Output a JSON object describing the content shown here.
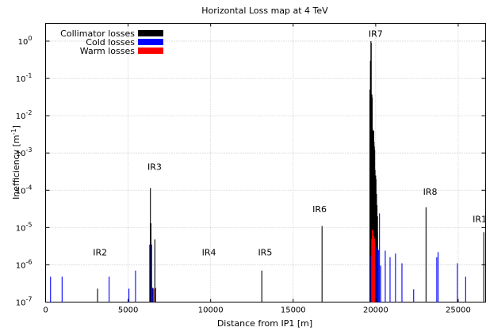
{
  "chart_data": {
    "type": "bar",
    "title": "Horizontal Loss map at 4 TeV",
    "xlabel": "Distance from IP1 [m]",
    "ylabel": "Inefficiency [m",
    "ylabel_sup": "-1",
    "ylabel_end": "]",
    "xlim": [
      0,
      26659
    ],
    "ylim": [
      1e-07,
      3
    ],
    "y_scale": "log",
    "grid": true,
    "legend_position": "top-left",
    "x_ticks": [
      {
        "value": 0,
        "label": "0"
      },
      {
        "value": 5000,
        "label": "5000"
      },
      {
        "value": 10000,
        "label": "10000"
      },
      {
        "value": 15000,
        "label": "15000"
      },
      {
        "value": 20000,
        "label": "20000"
      },
      {
        "value": 25000,
        "label": "25000"
      }
    ],
    "y_ticks": [
      {
        "value": 1e-07,
        "base": "10",
        "exp": "-7"
      },
      {
        "value": 1e-06,
        "base": "10",
        "exp": "-6"
      },
      {
        "value": 1e-05,
        "base": "10",
        "exp": "-5"
      },
      {
        "value": 0.0001,
        "base": "10",
        "exp": "-4"
      },
      {
        "value": 0.001,
        "base": "10",
        "exp": "-3"
      },
      {
        "value": 0.01,
        "base": "10",
        "exp": "-2"
      },
      {
        "value": 0.1,
        "base": "10",
        "exp": "-1"
      },
      {
        "value": 1,
        "base": "10",
        "exp": "0"
      }
    ],
    "annotations": [
      {
        "text": "IR2",
        "x": 3300,
        "y": 1.8e-06
      },
      {
        "text": "IR3",
        "x": 6600,
        "y": 0.00035
      },
      {
        "text": "IR4",
        "x": 9900,
        "y": 1.8e-06
      },
      {
        "text": "IR5",
        "x": 13300,
        "y": 1.8e-06
      },
      {
        "text": "IR6",
        "x": 16600,
        "y": 2.6e-05
      },
      {
        "text": "IR7",
        "x": 20000,
        "y": 1.3
      },
      {
        "text": "IR8",
        "x": 23300,
        "y": 7.5e-05
      },
      {
        "text": "IR1",
        "x": 26300,
        "y": 1.4e-05
      }
    ],
    "series": [
      {
        "name": "Collimator losses",
        "color": "#000000",
        "points": [
          [
            3150,
            2.3e-07
          ],
          [
            6350,
            0.000115
          ],
          [
            6385,
            1.3e-05
          ],
          [
            6420,
            3.5e-06
          ],
          [
            6480,
            2.4e-07
          ],
          [
            6620,
            4.8e-06
          ],
          [
            6660,
            2.4e-07
          ],
          [
            13100,
            7e-07
          ],
          [
            16750,
            1.1e-05
          ],
          [
            19650,
            0.05
          ],
          [
            19680,
            0.3
          ],
          [
            19710,
            1.0
          ],
          [
            19730,
            0.9
          ],
          [
            19750,
            0.02
          ],
          [
            19770,
            0.037
          ],
          [
            19790,
            0.03
          ],
          [
            19800,
            0.0045
          ],
          [
            19820,
            0.004
          ],
          [
            19840,
            0.004
          ],
          [
            19860,
            0.003
          ],
          [
            19880,
            0.004
          ],
          [
            19900,
            0.002
          ],
          [
            19920,
            0.0015
          ],
          [
            19940,
            0.0012
          ],
          [
            19960,
            0.00035
          ],
          [
            19980,
            0.0001
          ],
          [
            20000,
            0.00025
          ],
          [
            20020,
            0.0002
          ],
          [
            20050,
            8e-05
          ],
          [
            20080,
            4e-05
          ],
          [
            20110,
            2e-05
          ],
          [
            23050,
            3.5e-05
          ],
          [
            26550,
            7.5e-06
          ]
        ]
      },
      {
        "name": "Cold losses",
        "color": "#0000ff",
        "points": [
          [
            300,
            4.8e-07
          ],
          [
            1000,
            4.8e-07
          ],
          [
            3850,
            4.8e-07
          ],
          [
            5050,
            2.3e-07
          ],
          [
            5450,
            7e-07
          ],
          [
            6310,
            3.5e-06
          ],
          [
            6500,
            2.4e-07
          ],
          [
            19720,
            1.7e-06
          ],
          [
            19800,
            9e-07
          ],
          [
            19850,
            1.1e-06
          ],
          [
            19900,
            1.4e-06
          ],
          [
            20020,
            3e-06
          ],
          [
            20120,
            7e-06
          ],
          [
            20180,
            2.5e-06
          ],
          [
            20230,
            2.4e-05
          ],
          [
            20300,
            9.5e-07
          ],
          [
            20580,
            2.4e-06
          ],
          [
            20870,
            1.6e-06
          ],
          [
            21200,
            2e-06
          ],
          [
            21590,
            1.1e-06
          ],
          [
            22300,
            2.2e-07
          ],
          [
            23700,
            1.6e-06
          ],
          [
            23780,
            2.2e-06
          ],
          [
            24950,
            1.1e-06
          ],
          [
            25450,
            4.8e-07
          ]
        ]
      },
      {
        "name": "Warm losses",
        "color": "#ff0000",
        "points": [
          [
            6550,
            2.3e-07
          ],
          [
            19760,
            5e-06
          ],
          [
            19790,
            9e-06
          ],
          [
            19810,
            5e-06
          ],
          [
            19830,
            8e-06
          ],
          [
            19850,
            4e-06
          ],
          [
            19870,
            5e-06
          ],
          [
            19890,
            6e-06
          ],
          [
            19910,
            3e-06
          ],
          [
            19930,
            5e-06
          ],
          [
            19950,
            4e-06
          ]
        ]
      }
    ]
  }
}
